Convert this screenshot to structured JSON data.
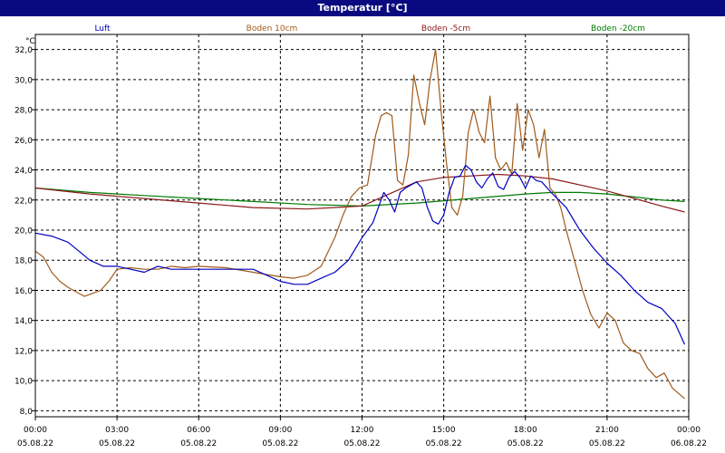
{
  "window": {
    "title": "Temperatur [°C]"
  },
  "chart_data": {
    "type": "line",
    "title": "Temperatur [°C]",
    "ylabel": "°C",
    "ylim": [
      7.6,
      33.0
    ],
    "yticks": [
      "8,0",
      "10,0",
      "12,0",
      "14,0",
      "16,0",
      "18,0",
      "20,0",
      "22,0",
      "24,0",
      "26,0",
      "28,0",
      "30,0",
      "32,0"
    ],
    "ytick_values": [
      8,
      10,
      12,
      14,
      16,
      18,
      20,
      22,
      24,
      26,
      28,
      30,
      32
    ],
    "xlim": [
      0,
      24
    ],
    "xticks": [
      {
        "hour": 0,
        "time": "00:00",
        "date": "05.08.22"
      },
      {
        "hour": 3,
        "time": "03:00",
        "date": "05.08.22"
      },
      {
        "hour": 6,
        "time": "06:00",
        "date": "05.08.22"
      },
      {
        "hour": 9,
        "time": "09:00",
        "date": "05.08.22"
      },
      {
        "hour": 12,
        "time": "12:00",
        "date": "05.08.22"
      },
      {
        "hour": 15,
        "time": "15:00",
        "date": "05.08.22"
      },
      {
        "hour": 18,
        "time": "18:00",
        "date": "05.08.22"
      },
      {
        "hour": 21,
        "time": "21:00",
        "date": "05.08.22"
      },
      {
        "hour": 24,
        "time": "00:00",
        "date": "06.08.22"
      }
    ],
    "grid": true,
    "legend_position": "top",
    "series": [
      {
        "name": "Luft",
        "color": "#0000c0",
        "x": [
          0,
          0.6,
          1.2,
          1.6,
          2.0,
          2.5,
          3.0,
          3.5,
          4.0,
          4.5,
          5.0,
          5.5,
          6.0,
          7.0,
          8.0,
          9.0,
          9.5,
          10.0,
          10.5,
          11.0,
          11.5,
          12.0,
          12.4,
          12.6,
          12.8,
          13.0,
          13.2,
          13.4,
          13.6,
          13.8,
          14.0,
          14.2,
          14.4,
          14.6,
          14.8,
          15.0,
          15.2,
          15.4,
          15.6,
          15.8,
          16.0,
          16.2,
          16.4,
          16.6,
          16.8,
          17.0,
          17.2,
          17.4,
          17.6,
          17.8,
          18.0,
          18.2,
          18.4,
          18.6,
          18.8,
          19.0,
          19.5,
          20.0,
          20.5,
          21.0,
          21.5,
          22.0,
          22.5,
          23.0,
          23.5,
          23.85
        ],
        "values": [
          19.8,
          19.6,
          19.2,
          18.6,
          18.0,
          17.6,
          17.6,
          17.4,
          17.2,
          17.6,
          17.4,
          17.4,
          17.4,
          17.4,
          17.4,
          16.6,
          16.4,
          16.4,
          16.8,
          17.2,
          18.0,
          19.5,
          20.5,
          21.5,
          22.5,
          22.0,
          21.2,
          22.5,
          22.8,
          23.0,
          23.2,
          22.8,
          21.5,
          20.6,
          20.4,
          21.0,
          22.5,
          23.5,
          23.6,
          24.3,
          24.0,
          23.2,
          22.8,
          23.4,
          23.8,
          22.9,
          22.7,
          23.5,
          23.9,
          23.5,
          22.8,
          23.6,
          23.3,
          23.2,
          22.8,
          22.4,
          21.5,
          20.0,
          18.8,
          17.8,
          17.0,
          16.0,
          15.2,
          14.8,
          13.8,
          12.4
        ]
      },
      {
        "name": "Boden 10cm",
        "color": "#a05a1a",
        "x": [
          0,
          0.3,
          0.6,
          0.9,
          1.2,
          1.5,
          1.8,
          2.1,
          2.4,
          2.7,
          3.0,
          3.5,
          4.0,
          4.5,
          5.0,
          5.5,
          6.0,
          7.0,
          8.0,
          9.0,
          9.5,
          10.0,
          10.5,
          11.0,
          11.3,
          11.6,
          11.9,
          12.2,
          12.5,
          12.7,
          12.9,
          13.1,
          13.3,
          13.5,
          13.7,
          13.9,
          14.1,
          14.3,
          14.5,
          14.7,
          14.9,
          15.1,
          15.3,
          15.5,
          15.7,
          15.9,
          16.1,
          16.3,
          16.5,
          16.7,
          16.9,
          17.1,
          17.3,
          17.5,
          17.7,
          17.9,
          18.1,
          18.3,
          18.5,
          18.7,
          18.9,
          19.1,
          19.3,
          19.5,
          19.8,
          20.1,
          20.4,
          20.7,
          21.0,
          21.3,
          21.6,
          21.9,
          22.2,
          22.5,
          22.8,
          23.1,
          23.4,
          23.85
        ],
        "values": [
          18.6,
          18.2,
          17.2,
          16.6,
          16.2,
          15.9,
          15.6,
          15.8,
          16.0,
          16.6,
          17.4,
          17.5,
          17.4,
          17.4,
          17.6,
          17.5,
          17.6,
          17.5,
          17.2,
          16.9,
          16.8,
          17.0,
          17.6,
          19.5,
          21.0,
          22.2,
          22.8,
          23.0,
          26.3,
          27.6,
          27.8,
          27.6,
          23.3,
          23.0,
          25.0,
          30.3,
          28.5,
          27.0,
          30.0,
          32.0,
          28.0,
          24.5,
          21.5,
          21.0,
          22.3,
          26.5,
          28.0,
          26.5,
          25.8,
          28.9,
          24.8,
          24.0,
          24.5,
          23.7,
          28.4,
          25.3,
          28.0,
          27.0,
          24.8,
          26.7,
          22.8,
          22.4,
          21.5,
          20.0,
          18.0,
          16.0,
          14.4,
          13.5,
          14.5,
          14.0,
          12.5,
          12.0,
          11.8,
          10.8,
          10.2,
          10.5,
          9.5,
          8.8
        ]
      },
      {
        "name": "Boden -5cm",
        "color": "#8b1a1a",
        "x": [
          0,
          2,
          4,
          6,
          8,
          10,
          12,
          13,
          14,
          15,
          16,
          17,
          18,
          19,
          20,
          21,
          22,
          23,
          23.85
        ],
        "values": [
          22.8,
          22.4,
          22.1,
          21.8,
          21.5,
          21.4,
          21.6,
          22.4,
          23.2,
          23.5,
          23.6,
          23.7,
          23.6,
          23.4,
          23.0,
          22.6,
          22.1,
          21.6,
          21.2
        ]
      },
      {
        "name": "Boden -20cm",
        "color": "#007a00",
        "x": [
          0,
          2,
          4,
          6,
          8,
          10,
          12,
          14,
          16,
          18,
          19,
          20,
          21,
          22,
          23,
          23.85
        ],
        "values": [
          22.8,
          22.5,
          22.3,
          22.1,
          21.9,
          21.7,
          21.6,
          21.8,
          22.1,
          22.4,
          22.5,
          22.5,
          22.4,
          22.2,
          22.0,
          21.9
        ]
      }
    ]
  }
}
